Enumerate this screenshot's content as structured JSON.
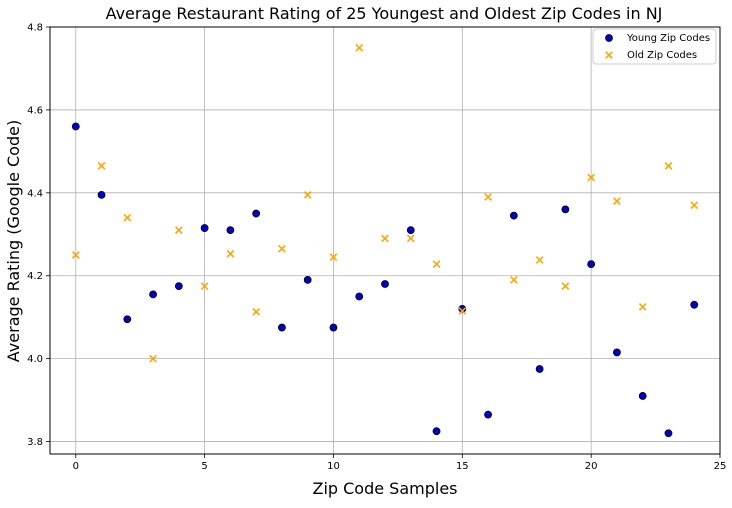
{
  "chart_data": {
    "type": "scatter",
    "title": "Average Restaurant Rating of 25 Youngest and Oldest Zip Codes in NJ",
    "xlabel": "Zip Code Samples",
    "ylabel": "Average Rating (Google Code)",
    "xlim": [
      -1,
      25
    ],
    "ylim": [
      3.77,
      4.8
    ],
    "xticks": [
      0,
      5,
      10,
      15,
      20,
      25
    ],
    "yticks": [
      3.8,
      4.0,
      4.2,
      4.4,
      4.6,
      4.8
    ],
    "xtick_labels": [
      "0",
      "5",
      "10",
      "15",
      "20",
      "25"
    ],
    "ytick_labels": [
      "3.8",
      "4.0",
      "4.2",
      "4.4",
      "4.6",
      "4.8"
    ],
    "grid": true,
    "legend_position": "top-right",
    "series": [
      {
        "name": "Young Zip Codes",
        "marker": "circle",
        "color": "#0000cc",
        "edge_color": "#000000",
        "x": [
          0,
          1,
          2,
          3,
          4,
          5,
          6,
          7,
          8,
          9,
          10,
          11,
          12,
          13,
          14,
          15,
          16,
          17,
          18,
          19,
          20,
          21,
          22,
          23,
          24
        ],
        "y": [
          4.56,
          4.395,
          4.095,
          4.155,
          4.175,
          4.315,
          4.31,
          4.35,
          4.075,
          4.19,
          4.075,
          4.15,
          4.18,
          4.31,
          3.825,
          4.12,
          3.865,
          4.345,
          3.975,
          4.36,
          4.228,
          4.015,
          3.91,
          3.82,
          4.13
        ]
      },
      {
        "name": "Old Zip Codes",
        "marker": "x",
        "color": "#ffa500",
        "x": [
          0,
          1,
          2,
          3,
          4,
          5,
          6,
          7,
          8,
          9,
          10,
          11,
          12,
          13,
          14,
          15,
          16,
          17,
          18,
          19,
          20,
          21,
          22,
          23,
          24
        ],
        "y": [
          4.25,
          4.465,
          4.34,
          4.0,
          4.31,
          4.175,
          4.253,
          4.113,
          4.265,
          4.395,
          4.245,
          4.75,
          4.29,
          4.29,
          4.228,
          4.115,
          4.39,
          4.19,
          4.238,
          4.175,
          4.437,
          4.38,
          4.125,
          4.465,
          4.37
        ]
      }
    ]
  }
}
